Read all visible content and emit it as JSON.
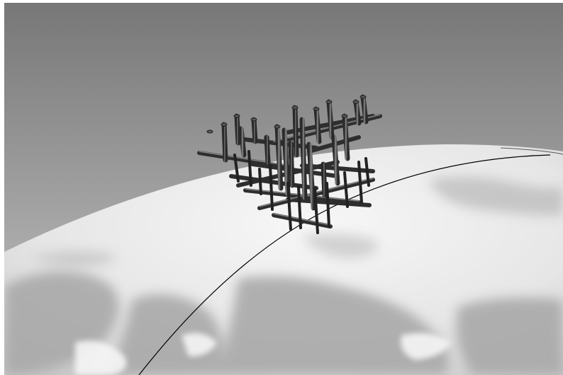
{
  "scene": {
    "description_labels": [],
    "colors": {
      "sky_top": "#7a7a7a",
      "sky_bottom": "#bdbdbd",
      "globe_light": "#f2f2f2",
      "globe_shadow": "#a8a8a8",
      "structure": "#3a3a3a",
      "structure_highlight": "#9a9a9a",
      "orbit_line": "#000000",
      "border": "#ffffff"
    },
    "objects": {
      "globe": "earth-globe",
      "structure": "lattice-space-structure",
      "orbit": "orbit-path"
    }
  }
}
